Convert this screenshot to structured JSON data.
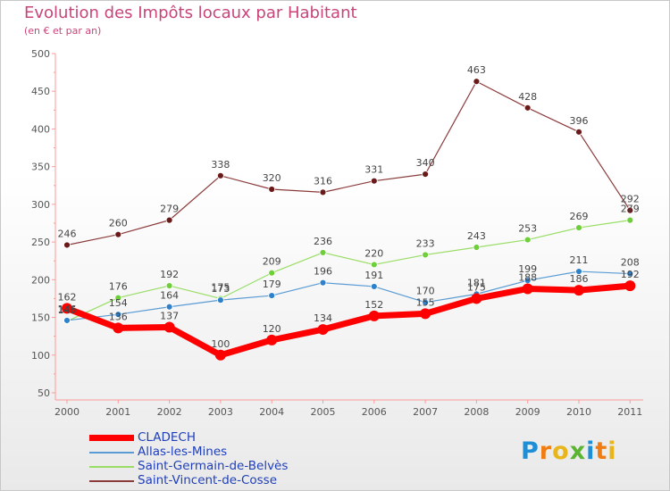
{
  "title": "Evolution des Impôts locaux par Habitant",
  "subtitle": "(en € et par an)",
  "brand": {
    "text": "Proxiti",
    "letter_colors": [
      "#1e8fd6",
      "#f07d14",
      "#e8b51a",
      "#5bb531",
      "#1e8fd6",
      "#f07d14",
      "#e8b51a"
    ]
  },
  "chart_data": {
    "type": "line",
    "title": "Evolution des Impôts locaux par Habitant",
    "subtitle": "(en € et par an)",
    "xlabel": "",
    "ylabel": "",
    "categories": [
      "2000",
      "2001",
      "2002",
      "2003",
      "2004",
      "2005",
      "2006",
      "2007",
      "2008",
      "2009",
      "2010",
      "2011"
    ],
    "ylim": [
      50,
      500
    ],
    "yticks": [
      50,
      100,
      150,
      200,
      250,
      300,
      350,
      400,
      450,
      500
    ],
    "legend_position": "bottom-left",
    "series": [
      {
        "name": "CLADECH",
        "color": "#ff0000",
        "values": [
          162,
          136,
          137,
          100,
          120,
          134,
          152,
          155,
          175,
          188,
          186,
          192
        ],
        "labels": [
          "162",
          "136",
          "137",
          "100",
          "120",
          "134",
          "152",
          "155",
          "175",
          "188",
          "186",
          "192"
        ],
        "line_width": 7,
        "marker_radius": 6
      },
      {
        "name": "Allas-les-Mines",
        "color": "#5a9bd3",
        "marker_fill": "#2e82cc",
        "values": [
          146,
          154,
          164,
          173,
          179,
          196,
          191,
          170,
          181,
          199,
          211,
          208
        ],
        "labels": [
          "146",
          "154",
          "164",
          "173",
          "179",
          "196",
          "191",
          "170",
          "181",
          "199",
          "211",
          "208"
        ],
        "line_width": 1.2,
        "marker_radius": 3.5
      },
      {
        "name": "Saint-Germain-de-Belvès",
        "color": "#99dd66",
        "marker_fill": "#6fcf3a",
        "values": [
          145,
          176,
          192,
          175,
          209,
          236,
          220,
          233,
          243,
          253,
          269,
          279
        ],
        "labels": [
          "145",
          "176",
          "192",
          "175",
          "209",
          "236",
          "220",
          "233",
          "243",
          "253",
          "269",
          "279"
        ],
        "line_width": 1.2,
        "marker_radius": 3.5
      },
      {
        "name": "Saint-Vincent-de-Cosse",
        "color": "#8b3a3a",
        "marker_fill": "#6b1a1a",
        "values": [
          246,
          260,
          279,
          338,
          320,
          316,
          331,
          340,
          463,
          428,
          396,
          292
        ],
        "labels": [
          "246",
          "260",
          "279",
          "338",
          "320",
          "316",
          "331",
          "340",
          "463",
          "428",
          "396",
          "292"
        ],
        "line_width": 1.2,
        "marker_radius": 3.5
      }
    ]
  }
}
